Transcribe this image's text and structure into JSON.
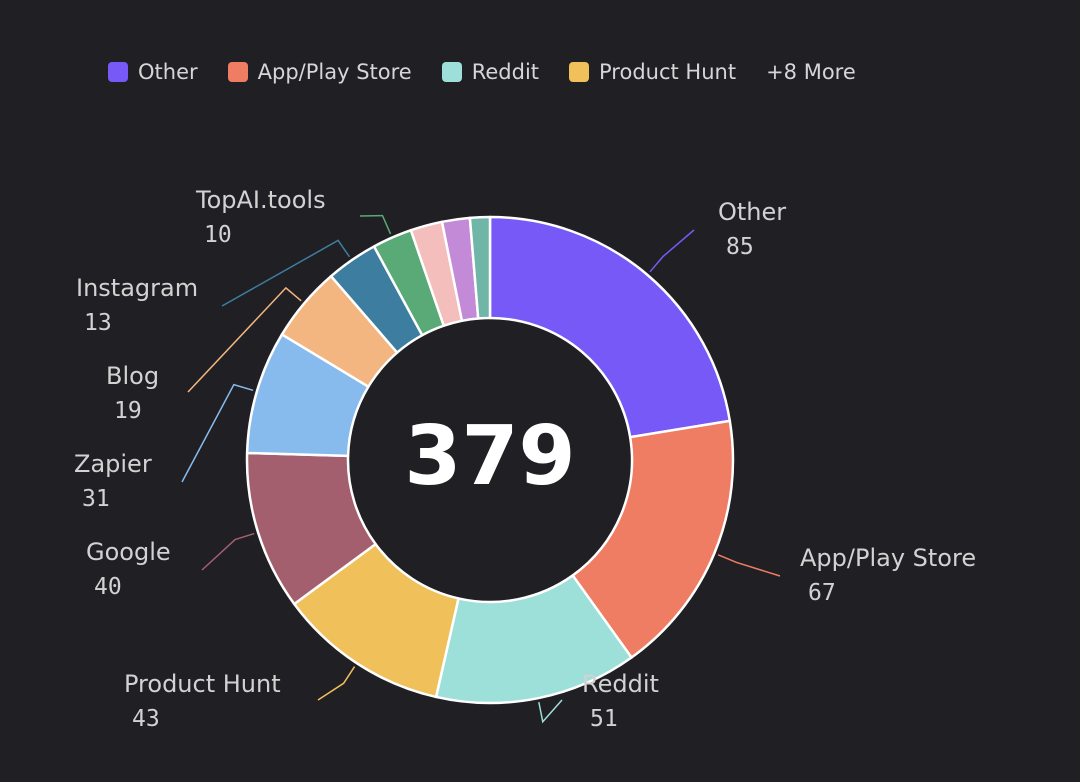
{
  "legend": {
    "items": [
      {
        "label": "Other",
        "color": "#7659f6"
      },
      {
        "label": "App/Play Store",
        "color": "#ef7d63"
      },
      {
        "label": "Reddit",
        "color": "#9de0d9"
      },
      {
        "label": "Product Hunt",
        "color": "#f0c05a"
      }
    ],
    "more_label": "+8 More"
  },
  "chart_data": {
    "type": "pie",
    "style": "donut",
    "total_label": "379",
    "slices": [
      {
        "label": "Other",
        "value": 85,
        "color": "#7659f6"
      },
      {
        "label": "App/Play Store",
        "value": 67,
        "color": "#ef7d63"
      },
      {
        "label": "Reddit",
        "value": 51,
        "color": "#9de0d9"
      },
      {
        "label": "Product Hunt",
        "value": 43,
        "color": "#f0c05a"
      },
      {
        "label": "Google",
        "value": 40,
        "color": "#a45f6e"
      },
      {
        "label": "Zapier",
        "value": 31,
        "color": "#87bbee"
      },
      {
        "label": "Blog",
        "value": 19,
        "color": "#f4b680"
      },
      {
        "label": "Instagram",
        "value": 13,
        "color": "#3d7ea0"
      },
      {
        "label": "TopAI.tools",
        "value": 10,
        "color": "#5aaa78"
      },
      {
        "label": "",
        "value": 8,
        "color": "#f3bebb"
      },
      {
        "label": "",
        "value": 7,
        "color": "#c38ad8"
      },
      {
        "label": "",
        "value": 5,
        "color": "#6fb5a8"
      }
    ]
  }
}
